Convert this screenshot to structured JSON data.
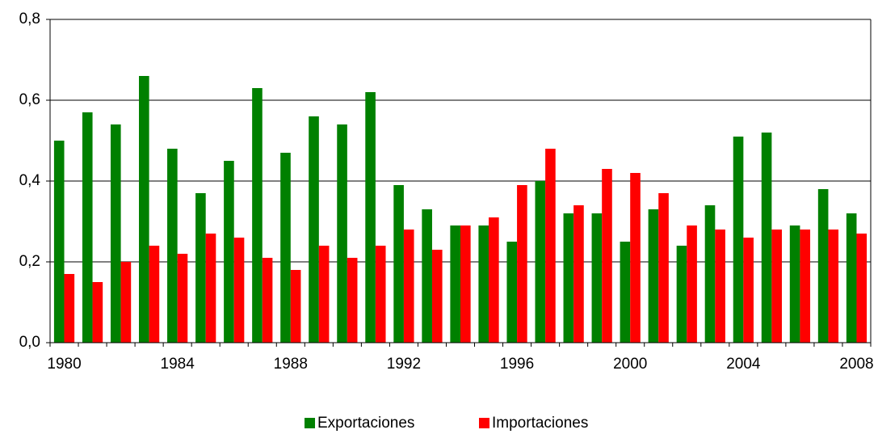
{
  "chart_data": {
    "type": "bar",
    "categories": [
      "1980",
      null,
      null,
      null,
      "1984",
      null,
      null,
      null,
      "1988",
      null,
      null,
      null,
      "1992",
      null,
      null,
      null,
      "1996",
      null,
      null,
      null,
      "2000",
      null,
      null,
      null,
      "2004",
      null,
      null,
      null,
      "2008"
    ],
    "series": [
      {
        "name": "Exportaciones",
        "color": "#008000",
        "values": [
          0.5,
          0.57,
          0.54,
          0.66,
          0.48,
          0.37,
          0.45,
          0.63,
          0.47,
          0.56,
          0.54,
          0.62,
          0.39,
          0.33,
          0.29,
          0.29,
          0.25,
          0.4,
          0.32,
          0.32,
          0.25,
          0.33,
          0.24,
          0.34,
          0.51,
          0.52,
          0.29,
          0.38,
          0.32
        ]
      },
      {
        "name": "Importaciones",
        "color": "#ff0000",
        "values": [
          0.17,
          0.15,
          0.2,
          0.24,
          0.22,
          0.27,
          0.26,
          0.21,
          0.18,
          0.24,
          0.21,
          0.24,
          0.28,
          0.23,
          0.29,
          0.31,
          0.39,
          0.48,
          0.34,
          0.43,
          0.42,
          0.37,
          0.29,
          0.28,
          0.26,
          0.28,
          0.28,
          0.28,
          0.27
        ]
      }
    ],
    "ylim": [
      0,
      0.8
    ],
    "yticks": [
      {
        "value": 0,
        "label": "0,0"
      },
      {
        "value": 0.2,
        "label": "0,2"
      },
      {
        "value": 0.4,
        "label": "0,4"
      },
      {
        "value": 0.6,
        "label": "0,6"
      },
      {
        "value": 0.8,
        "label": "0,8"
      }
    ],
    "grid": true
  }
}
